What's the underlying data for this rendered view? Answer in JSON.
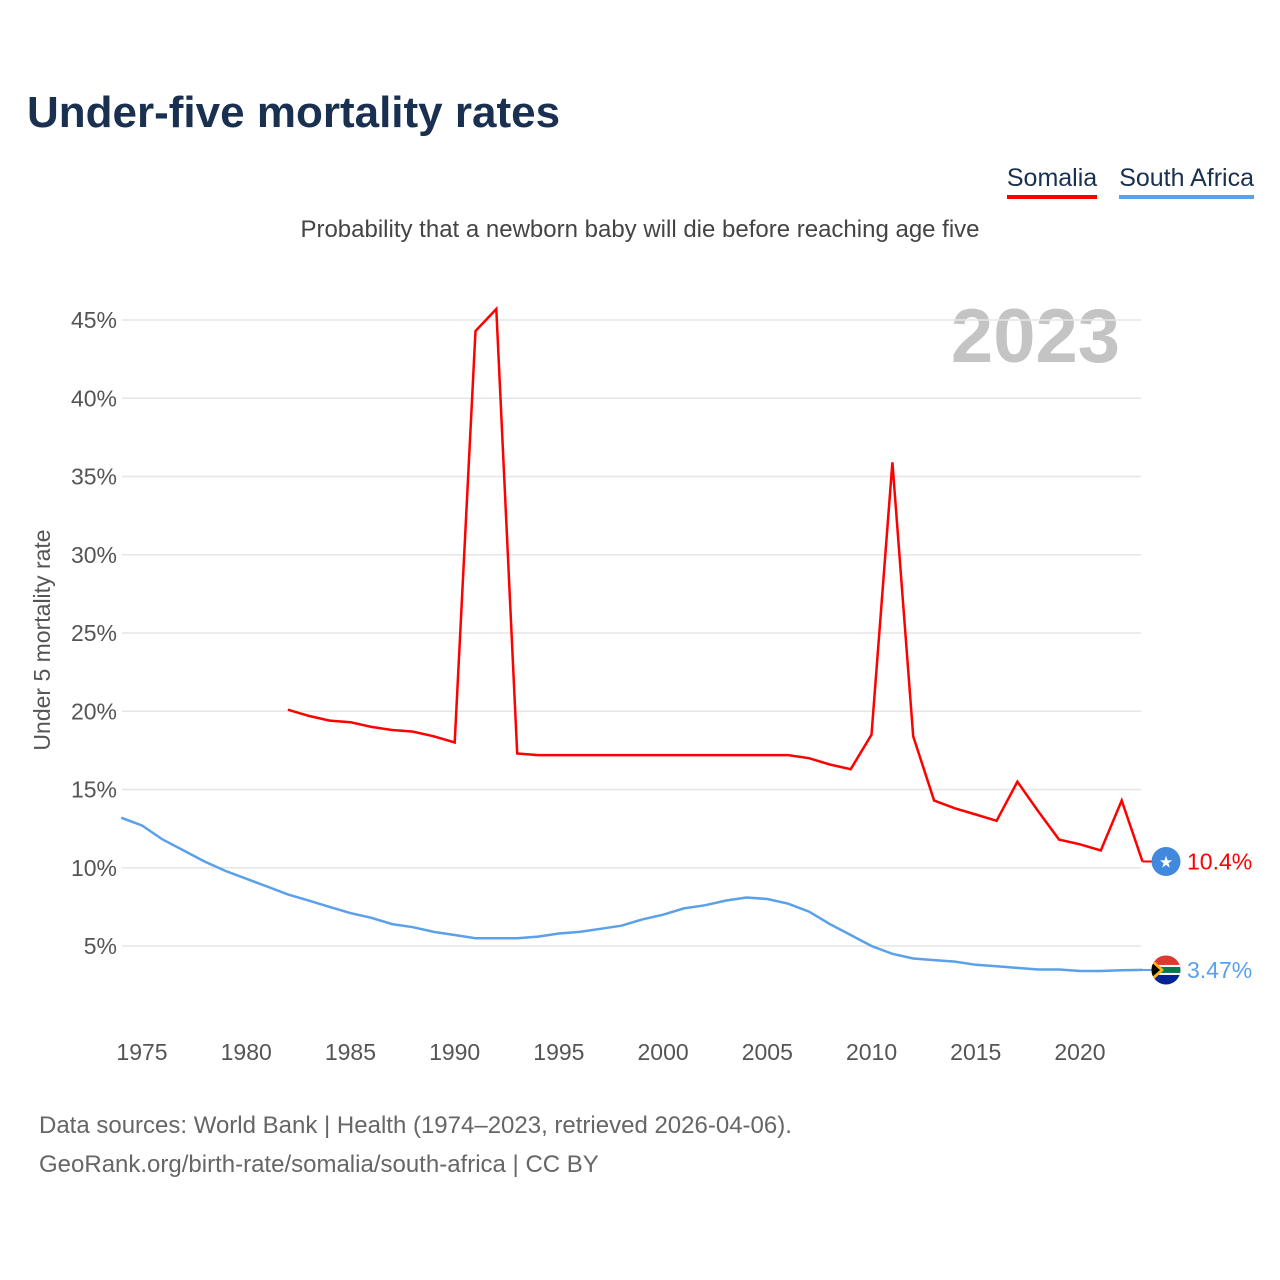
{
  "title": "Under-five mortality rates",
  "legend": [
    {
      "name": "Somalia",
      "color": "#ff0000"
    },
    {
      "name": "South Africa",
      "color": "#5aa0ea"
    }
  ],
  "subtitle": "Probability that a newborn baby will die before reaching age five",
  "year_watermark": "2023",
  "footer": {
    "line1": "Data sources: World Bank | Health (1974–2023, retrieved 2026-04-06).",
    "line2": "GeoRank.org/birth-rate/somalia/south-africa | CC BY"
  },
  "chart_data": {
    "type": "line",
    "title": "Under-five mortality rates",
    "xlabel": "",
    "ylabel": "Under 5 mortality rate",
    "xlim": [
      1974,
      2023
    ],
    "ylim": [
      0,
      47
    ],
    "xticks": [
      1975,
      1980,
      1985,
      1990,
      1995,
      2000,
      2005,
      2010,
      2015,
      2020
    ],
    "yticks": [
      5,
      10,
      15,
      20,
      25,
      30,
      35,
      40,
      45
    ],
    "ytick_labels": [
      "5%",
      "10%",
      "15%",
      "20%",
      "25%",
      "30%",
      "35%",
      "40%",
      "45%"
    ],
    "grid": true,
    "series": [
      {
        "name": "Somalia",
        "color": "#ff0000",
        "end_label": "10.4%",
        "x": [
          1982,
          1983,
          1984,
          1985,
          1986,
          1987,
          1988,
          1989,
          1990,
          1991,
          1992,
          1993,
          1994,
          1995,
          1996,
          1997,
          1998,
          1999,
          2000,
          2001,
          2002,
          2003,
          2004,
          2005,
          2006,
          2007,
          2008,
          2009,
          2010,
          2011,
          2012,
          2013,
          2014,
          2015,
          2016,
          2017,
          2018,
          2019,
          2020,
          2021,
          2022,
          2023
        ],
        "y": [
          20.1,
          19.7,
          19.4,
          19.3,
          19.0,
          18.8,
          18.7,
          18.4,
          18.0,
          44.3,
          45.7,
          17.3,
          17.2,
          17.2,
          17.2,
          17.2,
          17.2,
          17.2,
          17.2,
          17.2,
          17.2,
          17.2,
          17.2,
          17.2,
          17.2,
          17.0,
          16.6,
          16.3,
          18.5,
          35.9,
          18.4,
          14.3,
          13.8,
          13.4,
          13.0,
          15.5,
          13.6,
          11.8,
          11.5,
          11.1,
          14.3,
          10.4
        ]
      },
      {
        "name": "South Africa",
        "color": "#5aa0ea",
        "end_label": "3.47%",
        "x": [
          1974,
          1975,
          1976,
          1977,
          1978,
          1979,
          1980,
          1981,
          1982,
          1983,
          1984,
          1985,
          1986,
          1987,
          1988,
          1989,
          1990,
          1991,
          1992,
          1993,
          1994,
          1995,
          1996,
          1997,
          1998,
          1999,
          2000,
          2001,
          2002,
          2003,
          2004,
          2005,
          2006,
          2007,
          2008,
          2009,
          2010,
          2011,
          2012,
          2013,
          2014,
          2015,
          2016,
          2017,
          2018,
          2019,
          2020,
          2021,
          2022,
          2023
        ],
        "y": [
          13.2,
          12.7,
          11.8,
          11.1,
          10.4,
          9.8,
          9.3,
          8.8,
          8.3,
          7.9,
          7.5,
          7.1,
          6.8,
          6.4,
          6.2,
          5.9,
          5.7,
          5.5,
          5.5,
          5.5,
          5.6,
          5.8,
          5.9,
          6.1,
          6.3,
          6.7,
          7.0,
          7.4,
          7.6,
          7.9,
          8.1,
          8.0,
          7.7,
          7.2,
          6.4,
          5.7,
          5.0,
          4.5,
          4.2,
          4.1,
          4.0,
          3.8,
          3.7,
          3.6,
          3.5,
          3.5,
          3.4,
          3.4,
          3.45,
          3.47
        ]
      }
    ]
  }
}
